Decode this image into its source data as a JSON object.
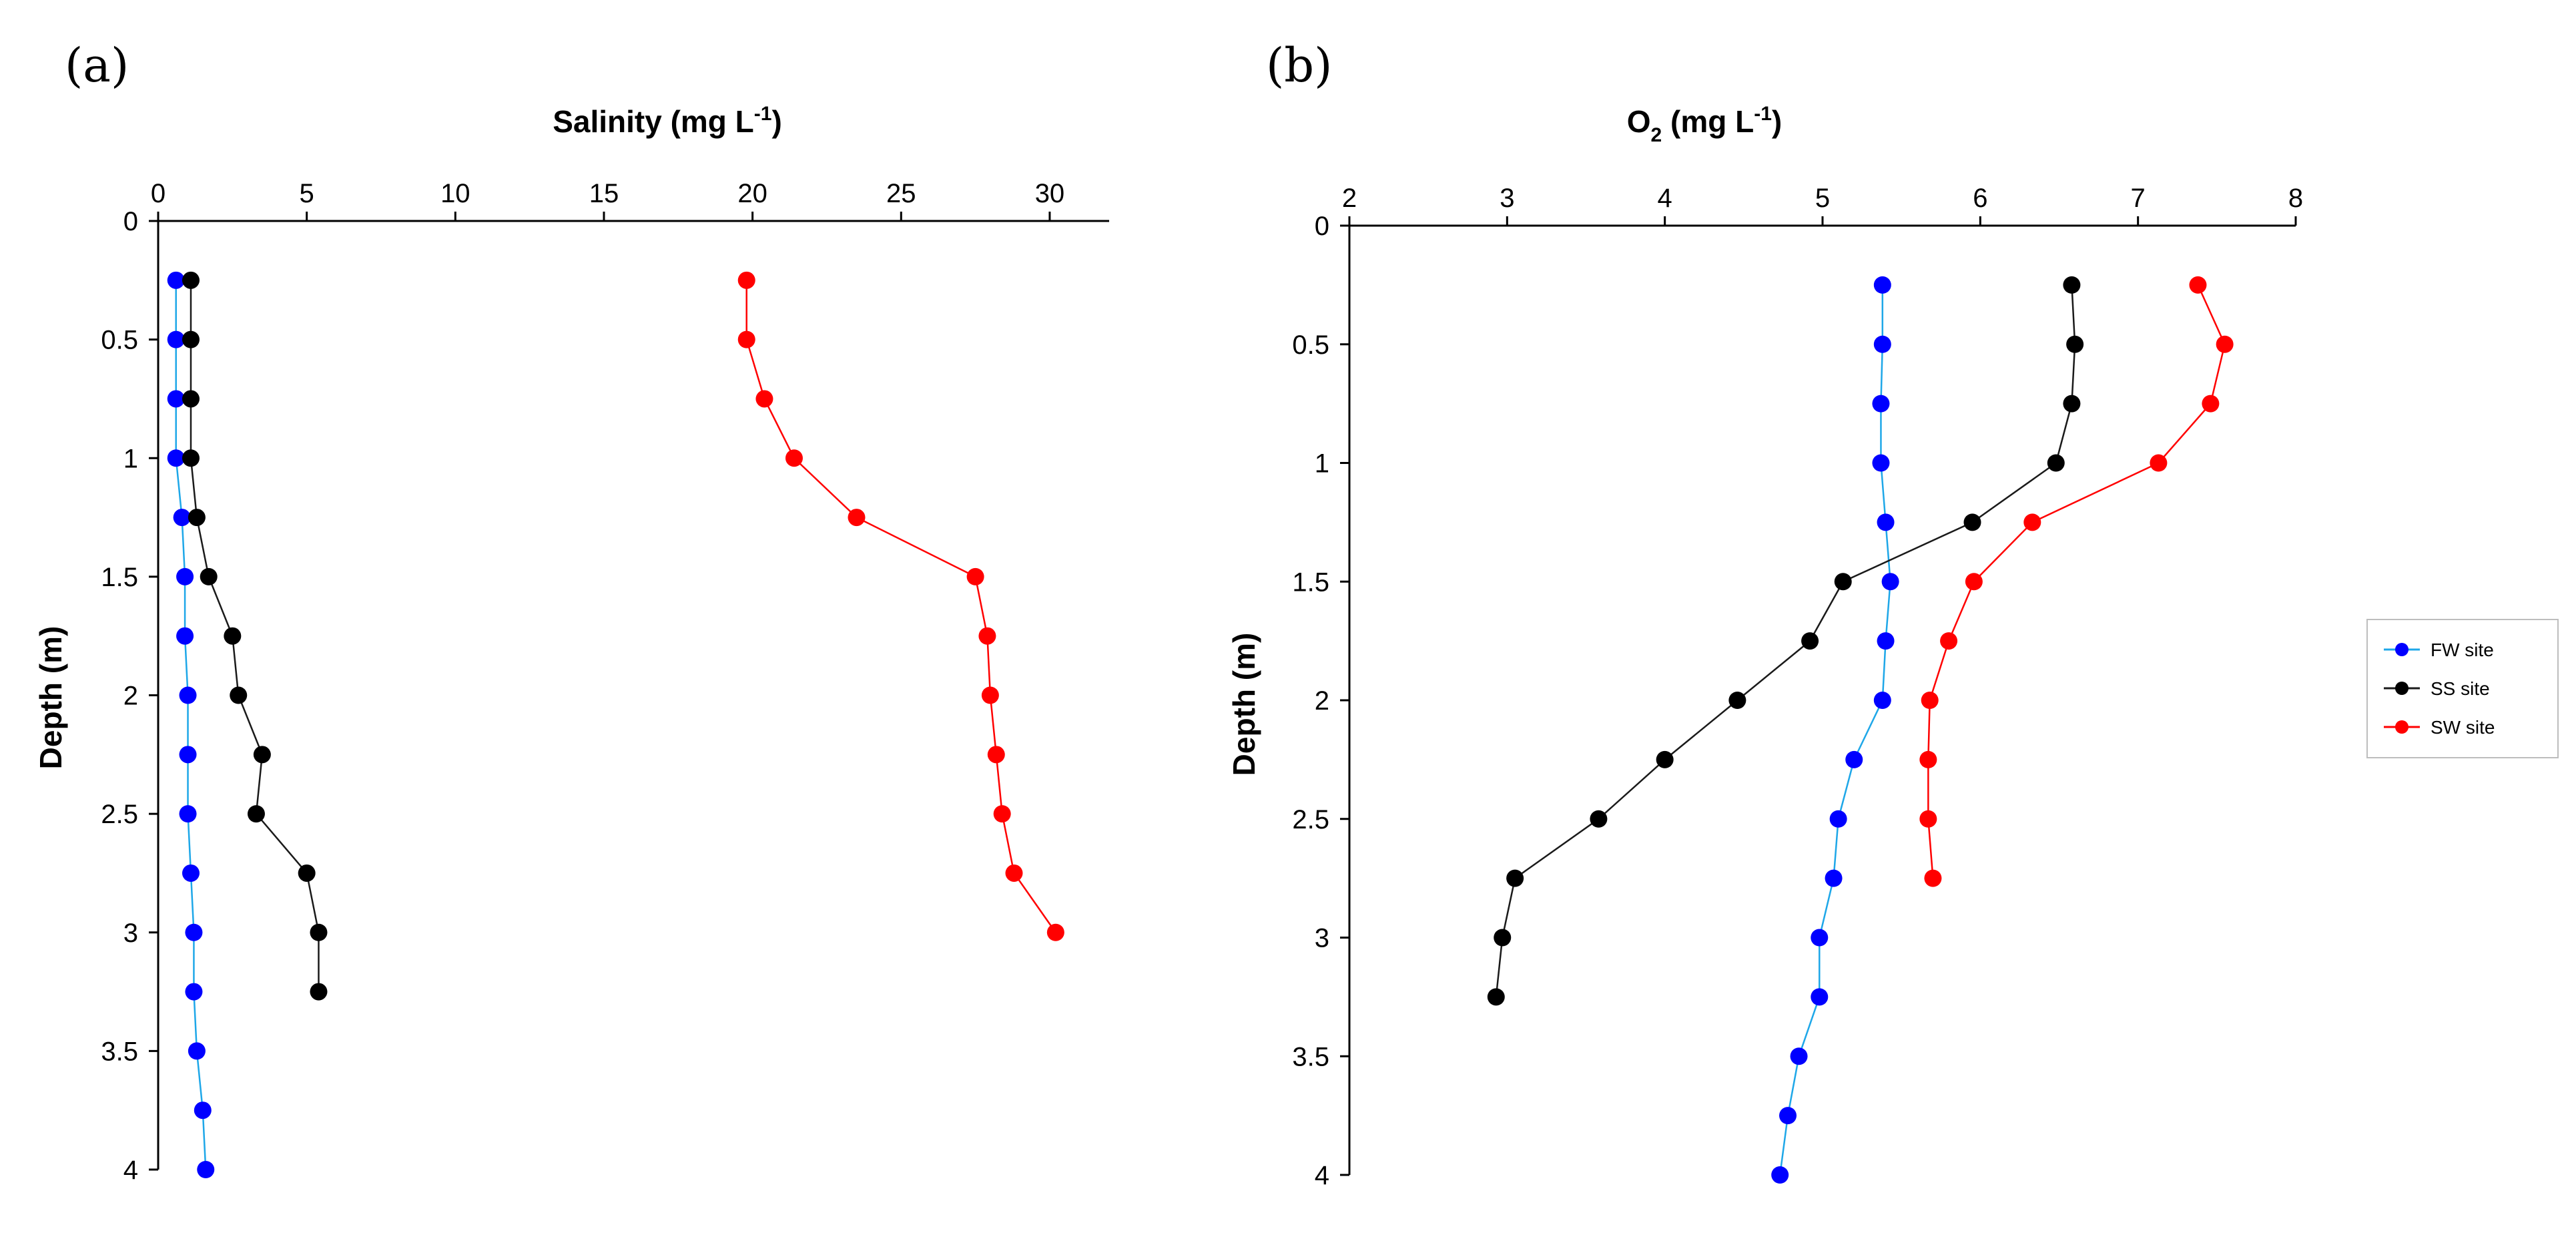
{
  "chart_data": [
    {
      "type": "line",
      "panel_label": "(a)",
      "xlabel": "Salinity (mg L",
      "xlabel_sup": "-1",
      "xlabel_close": ")",
      "ylabel": "Depth (m)",
      "xlim": [
        0,
        32
      ],
      "ylim": [
        0,
        4
      ],
      "x_ticks": [
        0,
        5,
        10,
        15,
        20,
        25,
        30
      ],
      "y_ticks": [
        0,
        0.5,
        1,
        1.5,
        2,
        2.5,
        3,
        3.5,
        4
      ],
      "x_axis_position": "top",
      "y_inverted": true,
      "series": [
        {
          "name": "FW site",
          "color": "#0000ff",
          "line_color": "#1ea7e8",
          "points": [
            [
              0.6,
              0.25
            ],
            [
              0.6,
              0.5
            ],
            [
              0.6,
              0.75
            ],
            [
              0.6,
              1.0
            ],
            [
              0.8,
              1.25
            ],
            [
              0.9,
              1.5
            ],
            [
              0.9,
              1.75
            ],
            [
              1.0,
              2.0
            ],
            [
              1.0,
              2.25
            ],
            [
              1.0,
              2.5
            ],
            [
              1.1,
              2.75
            ],
            [
              1.2,
              3.0
            ],
            [
              1.2,
              3.25
            ],
            [
              1.3,
              3.5
            ],
            [
              1.5,
              3.75
            ],
            [
              1.6,
              4.0
            ]
          ]
        },
        {
          "name": "SS site",
          "color": "#000000",
          "line_color": "#1a1a1a",
          "points": [
            [
              1.1,
              0.25
            ],
            [
              1.1,
              0.5
            ],
            [
              1.1,
              0.75
            ],
            [
              1.1,
              1.0
            ],
            [
              1.3,
              1.25
            ],
            [
              1.7,
              1.5
            ],
            [
              2.5,
              1.75
            ],
            [
              2.7,
              2.0
            ],
            [
              3.5,
              2.25
            ],
            [
              3.3,
              2.5
            ],
            [
              5.0,
              2.75
            ],
            [
              5.4,
              3.0
            ],
            [
              5.4,
              3.25
            ]
          ]
        },
        {
          "name": "SW site",
          "color": "#ff0000",
          "line_color": "#ff0000",
          "points": [
            [
              19.8,
              0.25
            ],
            [
              19.8,
              0.5
            ],
            [
              20.4,
              0.75
            ],
            [
              21.4,
              1.0
            ],
            [
              23.5,
              1.25
            ],
            [
              27.5,
              1.5
            ],
            [
              27.9,
              1.75
            ],
            [
              28.0,
              2.0
            ],
            [
              28.2,
              2.25
            ],
            [
              28.4,
              2.5
            ],
            [
              28.8,
              2.75
            ],
            [
              30.2,
              3.0
            ]
          ]
        }
      ]
    },
    {
      "type": "line",
      "panel_label": "(b)",
      "xlabel": "O",
      "xlabel_sub": "2",
      "xlabel_close": " (mg L",
      "xlabel_sup": "-1",
      "xlabel_end": ")",
      "ylabel": "Depth (m)",
      "xlim": [
        2,
        8
      ],
      "ylim": [
        0,
        4
      ],
      "x_ticks": [
        2,
        3,
        4,
        5,
        6,
        7,
        8
      ],
      "y_ticks": [
        0,
        0.5,
        1,
        1.5,
        2,
        2.5,
        3,
        3.5,
        4
      ],
      "x_axis_position": "top",
      "y_inverted": true,
      "series": [
        {
          "name": "FW site",
          "color": "#0000ff",
          "line_color": "#1ea7e8",
          "points": [
            [
              5.38,
              0.25
            ],
            [
              5.38,
              0.5
            ],
            [
              5.37,
              0.75
            ],
            [
              5.37,
              1.0
            ],
            [
              5.4,
              1.25
            ],
            [
              5.43,
              1.5
            ],
            [
              5.4,
              1.75
            ],
            [
              5.38,
              2.0
            ],
            [
              5.2,
              2.25
            ],
            [
              5.1,
              2.5
            ],
            [
              5.07,
              2.75
            ],
            [
              4.98,
              3.0
            ],
            [
              4.98,
              3.25
            ],
            [
              4.85,
              3.5
            ],
            [
              4.78,
              3.75
            ],
            [
              4.73,
              4.0
            ]
          ]
        },
        {
          "name": "SS site",
          "color": "#000000",
          "line_color": "#1a1a1a",
          "points": [
            [
              6.58,
              0.25
            ],
            [
              6.6,
              0.5
            ],
            [
              6.58,
              0.75
            ],
            [
              6.48,
              1.0
            ],
            [
              5.95,
              1.25
            ],
            [
              5.13,
              1.5
            ],
            [
              4.92,
              1.75
            ],
            [
              4.46,
              2.0
            ],
            [
              4.0,
              2.25
            ],
            [
              3.58,
              2.5
            ],
            [
              3.05,
              2.75
            ],
            [
              2.97,
              3.0
            ],
            [
              2.93,
              3.25
            ]
          ]
        },
        {
          "name": "SW site",
          "color": "#ff0000",
          "line_color": "#ff0000",
          "points": [
            [
              7.38,
              0.25
            ],
            [
              7.55,
              0.5
            ],
            [
              7.46,
              0.75
            ],
            [
              7.13,
              1.0
            ],
            [
              6.33,
              1.25
            ],
            [
              5.96,
              1.5
            ],
            [
              5.8,
              1.75
            ],
            [
              5.68,
              2.0
            ],
            [
              5.67,
              2.25
            ],
            [
              5.67,
              2.5
            ],
            [
              5.7,
              2.75
            ]
          ]
        }
      ]
    }
  ],
  "legend": {
    "entries": [
      "FW site",
      "SS site",
      "SW site"
    ]
  }
}
